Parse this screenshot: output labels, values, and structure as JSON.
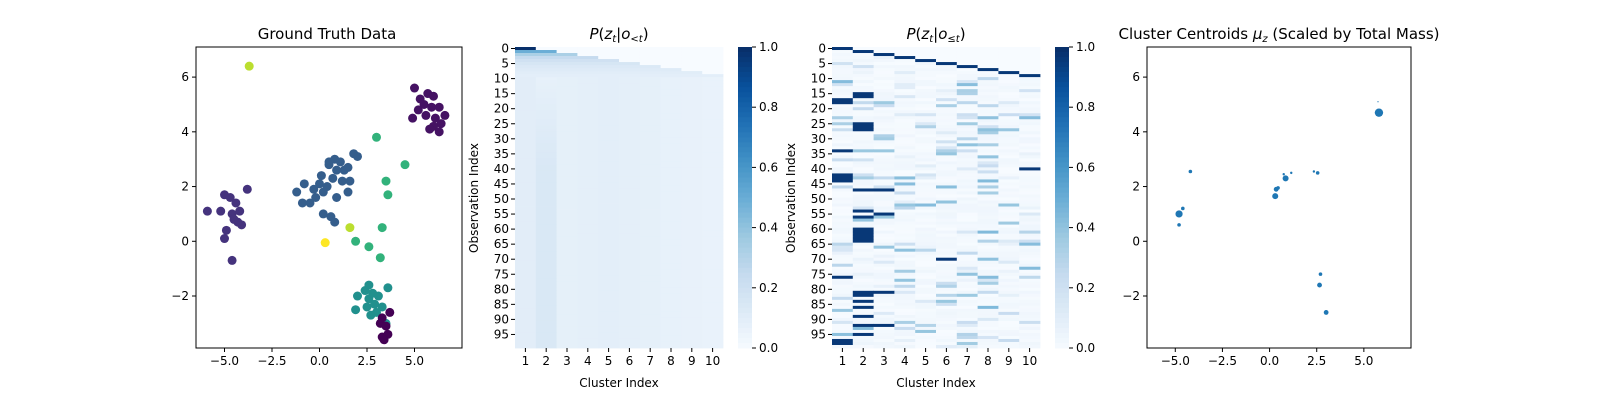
{
  "chart_data": [
    {
      "type": "scatter",
      "title": "Ground Truth Data",
      "xlabel": "",
      "ylabel": "",
      "xlim": [
        -6.5,
        7.5
      ],
      "ylim": [
        -3.9,
        7.1
      ],
      "xticks": [
        "−5.0",
        "−2.5",
        "0.0",
        "2.5",
        "5.0"
      ],
      "yticks": [
        "−2",
        "0",
        "2",
        "4",
        "6"
      ],
      "colormap": "viridis",
      "points": [
        {
          "x": 5.2,
          "y": 4.8,
          "c": 0.05
        },
        {
          "x": 5.5,
          "y": 5.0,
          "c": 0.05
        },
        {
          "x": 5.7,
          "y": 5.4,
          "c": 0.05
        },
        {
          "x": 6.0,
          "y": 5.3,
          "c": 0.05
        },
        {
          "x": 5.9,
          "y": 4.9,
          "c": 0.05
        },
        {
          "x": 6.3,
          "y": 4.9,
          "c": 0.05
        },
        {
          "x": 6.1,
          "y": 4.5,
          "c": 0.05
        },
        {
          "x": 5.6,
          "y": 4.6,
          "c": 0.05
        },
        {
          "x": 6.6,
          "y": 4.6,
          "c": 0.05
        },
        {
          "x": 6.4,
          "y": 4.3,
          "c": 0.05
        },
        {
          "x": 6.0,
          "y": 4.2,
          "c": 0.05
        },
        {
          "x": 4.9,
          "y": 4.5,
          "c": 0.05
        },
        {
          "x": 5.8,
          "y": 4.1,
          "c": 0.05
        },
        {
          "x": 6.3,
          "y": 4.0,
          "c": 0.05
        },
        {
          "x": 5.0,
          "y": 5.6,
          "c": 0.05
        },
        {
          "x": 5.3,
          "y": 5.2,
          "c": 0.05
        },
        {
          "x": -5.9,
          "y": 1.1,
          "c": 0.15
        },
        {
          "x": -5.2,
          "y": 1.1,
          "c": 0.15
        },
        {
          "x": -5.0,
          "y": 1.7,
          "c": 0.15
        },
        {
          "x": -4.7,
          "y": 1.6,
          "c": 0.15
        },
        {
          "x": -4.4,
          "y": 1.4,
          "c": 0.15
        },
        {
          "x": -4.6,
          "y": 1.0,
          "c": 0.15
        },
        {
          "x": -4.2,
          "y": 1.1,
          "c": 0.15
        },
        {
          "x": -4.3,
          "y": 0.7,
          "c": 0.15
        },
        {
          "x": -4.5,
          "y": 0.8,
          "c": 0.15
        },
        {
          "x": -4.9,
          "y": 0.4,
          "c": 0.15
        },
        {
          "x": -4.1,
          "y": 0.6,
          "c": 0.15
        },
        {
          "x": -5.0,
          "y": 0.1,
          "c": 0.15
        },
        {
          "x": -4.6,
          "y": -0.7,
          "c": 0.15
        },
        {
          "x": -3.8,
          "y": 1.9,
          "c": 0.15
        },
        {
          "x": -1.2,
          "y": 1.8,
          "c": 0.3
        },
        {
          "x": -0.8,
          "y": 2.1,
          "c": 0.3
        },
        {
          "x": -0.9,
          "y": 1.4,
          "c": 0.3
        },
        {
          "x": -0.5,
          "y": 1.4,
          "c": 0.3
        },
        {
          "x": -0.2,
          "y": 1.6,
          "c": 0.3
        },
        {
          "x": -0.3,
          "y": 1.9,
          "c": 0.3
        },
        {
          "x": 0.0,
          "y": 2.1,
          "c": 0.3
        },
        {
          "x": 0.2,
          "y": 1.8,
          "c": 0.3
        },
        {
          "x": 0.4,
          "y": 2.0,
          "c": 0.3
        },
        {
          "x": 0.1,
          "y": 2.4,
          "c": 0.3
        },
        {
          "x": 0.5,
          "y": 2.8,
          "c": 0.3
        },
        {
          "x": 0.8,
          "y": 3.0,
          "c": 0.3
        },
        {
          "x": 0.9,
          "y": 2.6,
          "c": 0.3
        },
        {
          "x": 1.1,
          "y": 2.9,
          "c": 0.3
        },
        {
          "x": 1.3,
          "y": 2.6,
          "c": 0.3
        },
        {
          "x": 1.5,
          "y": 2.7,
          "c": 0.3
        },
        {
          "x": 0.7,
          "y": 2.3,
          "c": 0.3
        },
        {
          "x": 1.2,
          "y": 2.2,
          "c": 0.3
        },
        {
          "x": 1.8,
          "y": 3.2,
          "c": 0.3
        },
        {
          "x": 2.0,
          "y": 3.1,
          "c": 0.3
        },
        {
          "x": 1.6,
          "y": 2.2,
          "c": 0.3
        },
        {
          "x": 1.5,
          "y": 1.8,
          "c": 0.3
        },
        {
          "x": 0.9,
          "y": 1.6,
          "c": 0.3
        },
        {
          "x": 0.2,
          "y": 1.0,
          "c": 0.3
        },
        {
          "x": 0.6,
          "y": 0.9,
          "c": 0.3
        },
        {
          "x": 0.8,
          "y": 0.7,
          "c": 0.3
        },
        {
          "x": 0.5,
          "y": 2.9,
          "c": 0.3
        },
        {
          "x": 2.0,
          "y": -2.0,
          "c": 0.5
        },
        {
          "x": 2.4,
          "y": -1.8,
          "c": 0.5
        },
        {
          "x": 2.6,
          "y": -2.1,
          "c": 0.5
        },
        {
          "x": 2.8,
          "y": -1.9,
          "c": 0.5
        },
        {
          "x": 3.1,
          "y": -2.0,
          "c": 0.5
        },
        {
          "x": 2.9,
          "y": -2.3,
          "c": 0.5
        },
        {
          "x": 2.5,
          "y": -2.4,
          "c": 0.5
        },
        {
          "x": 1.9,
          "y": -2.5,
          "c": 0.5
        },
        {
          "x": 3.3,
          "y": -2.4,
          "c": 0.5
        },
        {
          "x": 3.6,
          "y": -1.7,
          "c": 0.5
        },
        {
          "x": 2.7,
          "y": -2.7,
          "c": 0.5
        },
        {
          "x": 3.0,
          "y": -2.6,
          "c": 0.5
        },
        {
          "x": 2.6,
          "y": -1.6,
          "c": 0.5
        },
        {
          "x": 3.5,
          "y": -3.0,
          "c": 0.5
        },
        {
          "x": 3.3,
          "y": -3.5,
          "c": 0.0
        },
        {
          "x": 3.6,
          "y": -3.4,
          "c": 0.0
        },
        {
          "x": 3.2,
          "y": -3.0,
          "c": 0.0
        },
        {
          "x": 3.5,
          "y": -3.1,
          "c": 0.0
        },
        {
          "x": 3.4,
          "y": -3.6,
          "c": 0.0
        },
        {
          "x": 3.7,
          "y": -2.6,
          "c": 0.0
        },
        {
          "x": 3.3,
          "y": -2.8,
          "c": 0.0
        },
        {
          "x": 3.0,
          "y": 3.8,
          "c": 0.65
        },
        {
          "x": 4.5,
          "y": 2.8,
          "c": 0.65
        },
        {
          "x": 3.5,
          "y": 2.2,
          "c": 0.65
        },
        {
          "x": 3.6,
          "y": 1.7,
          "c": 0.65
        },
        {
          "x": 3.3,
          "y": 0.5,
          "c": 0.65
        },
        {
          "x": 1.9,
          "y": 0.0,
          "c": 0.65
        },
        {
          "x": 2.6,
          "y": -0.2,
          "c": 0.65
        },
        {
          "x": 3.2,
          "y": -0.6,
          "c": 0.65
        },
        {
          "x": 1.6,
          "y": 0.5,
          "c": 0.9
        },
        {
          "x": -3.7,
          "y": 6.4,
          "c": 0.9
        },
        {
          "x": 0.3,
          "y": -0.05,
          "c": 1.0
        }
      ]
    },
    {
      "type": "heatmap",
      "title": "P(z_t|o_<t)",
      "xlabel": "Cluster Index",
      "ylabel": "Observation Index",
      "colormap": "Blues",
      "rows": 100,
      "columns": [
        1,
        2,
        3,
        4,
        5,
        6,
        7,
        8,
        9,
        10
      ],
      "yticks": [
        "0",
        "5",
        "10",
        "15",
        "20",
        "25",
        "30",
        "35",
        "40",
        "45",
        "50",
        "55",
        "60",
        "65",
        "70",
        "75",
        "80",
        "85",
        "90",
        "95"
      ],
      "colorbar": {
        "min": 0.0,
        "max": 1.0,
        "ticks": [
          "0.0",
          "0.2",
          "0.4",
          "0.6",
          "0.8",
          "1.0"
        ]
      },
      "description_values": "Row t: column k (k<=t+1) ≈ 1/(t+1) in early rows, diffuse ~0.05–0.2 afterwards; column 2 slightly stronger (~0.2) for rows 15–99."
    },
    {
      "type": "heatmap",
      "title": "P(z_t|o_≤t)",
      "xlabel": "Cluster Index",
      "ylabel": "Observation Index",
      "colormap": "Blues",
      "rows": 100,
      "columns": [
        1,
        2,
        3,
        4,
        5,
        6,
        7,
        8,
        9,
        10
      ],
      "yticks": [
        "0",
        "5",
        "10",
        "15",
        "20",
        "25",
        "30",
        "35",
        "40",
        "45",
        "50",
        "55",
        "60",
        "65",
        "70",
        "75",
        "80",
        "85",
        "90",
        "95"
      ],
      "colorbar": {
        "min": 0.0,
        "max": 1.0,
        "ticks": [
          "0.0",
          "0.2",
          "0.4",
          "0.6",
          "0.8",
          "1.0"
        ]
      },
      "strong_cells": [
        [
          0,
          1
        ],
        [
          1,
          2
        ],
        [
          2,
          3
        ],
        [
          3,
          4
        ],
        [
          4,
          5
        ],
        [
          5,
          6
        ],
        [
          6,
          7
        ],
        [
          7,
          8
        ],
        [
          8,
          9
        ],
        [
          9,
          10
        ],
        [
          15,
          2
        ],
        [
          16,
          2
        ],
        [
          17,
          1
        ],
        [
          18,
          1
        ],
        [
          25,
          2
        ],
        [
          26,
          2
        ],
        [
          27,
          2
        ],
        [
          34,
          1
        ],
        [
          40,
          10
        ],
        [
          42,
          1
        ],
        [
          43,
          1
        ],
        [
          44,
          1
        ],
        [
          47,
          2
        ],
        [
          47,
          3
        ],
        [
          54,
          2
        ],
        [
          55,
          3
        ],
        [
          56,
          2
        ],
        [
          60,
          2
        ],
        [
          61,
          2
        ],
        [
          62,
          2
        ],
        [
          63,
          2
        ],
        [
          64,
          2
        ],
        [
          70,
          6
        ],
        [
          76,
          1
        ],
        [
          81,
          2
        ],
        [
          81,
          3
        ],
        [
          82,
          2
        ],
        [
          84,
          2
        ],
        [
          86,
          2
        ],
        [
          89,
          2
        ],
        [
          92,
          2
        ],
        [
          92,
          3
        ],
        [
          95,
          2
        ],
        [
          97,
          1
        ],
        [
          98,
          1
        ]
      ]
    },
    {
      "type": "scatter",
      "title": "Cluster Centroids μ_z (Scaled by Total Mass)",
      "xlabel": "",
      "ylabel": "",
      "xlim": [
        -6.5,
        7.5
      ],
      "ylim": [
        -3.9,
        7.1
      ],
      "xticks": [
        "−5.0",
        "−2.5",
        "0.0",
        "2.5",
        "5.0"
      ],
      "yticks": [
        "−2",
        "0",
        "2",
        "4",
        "6"
      ],
      "color": "#1f77b4",
      "points": [
        {
          "x": 5.8,
          "y": 4.7,
          "size": 7
        },
        {
          "x": 5.75,
          "y": 5.1,
          "size": 1
        },
        {
          "x": -4.8,
          "y": 1.0,
          "size": 6
        },
        {
          "x": -4.6,
          "y": 1.2,
          "size": 3
        },
        {
          "x": -4.8,
          "y": 0.6,
          "size": 3
        },
        {
          "x": -4.2,
          "y": 2.55,
          "size": 3
        },
        {
          "x": 0.3,
          "y": 1.65,
          "size": 5
        },
        {
          "x": 0.35,
          "y": 1.9,
          "size": 4
        },
        {
          "x": 0.45,
          "y": 1.95,
          "size": 3
        },
        {
          "x": 0.85,
          "y": 2.3,
          "size": 5
        },
        {
          "x": 0.75,
          "y": 2.45,
          "size": 2
        },
        {
          "x": 1.15,
          "y": 2.5,
          "size": 2
        },
        {
          "x": 2.35,
          "y": 2.55,
          "size": 2
        },
        {
          "x": 2.55,
          "y": 2.5,
          "size": 3
        },
        {
          "x": 2.7,
          "y": -1.2,
          "size": 3
        },
        {
          "x": 2.65,
          "y": -1.6,
          "size": 4
        },
        {
          "x": 3.0,
          "y": -2.6,
          "size": 4
        }
      ]
    }
  ]
}
